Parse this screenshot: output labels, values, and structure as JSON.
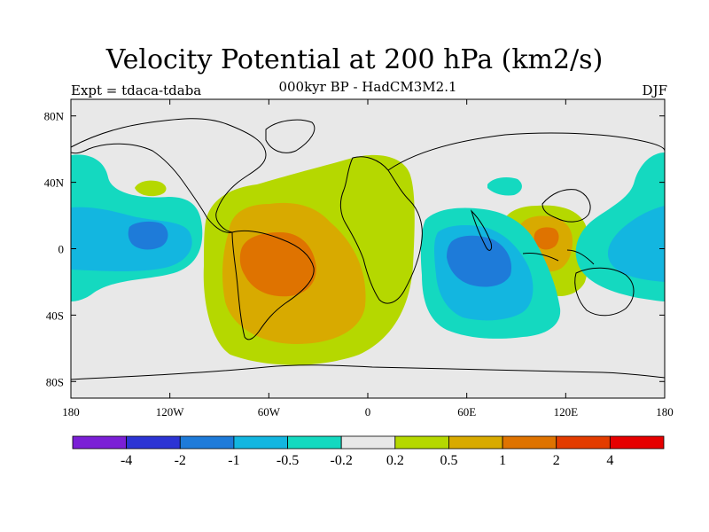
{
  "header": {
    "title": "Velocity Potential at 200 hPa (km2/s)",
    "subtitle": "000kyr BP - HadCM3M2.1",
    "experiment": "Expt = tdaca-tdaba",
    "season": "DJF"
  },
  "map": {
    "lat_ticks": [
      "80N",
      "40N",
      "0",
      "40S",
      "80S"
    ],
    "lon_ticks": [
      "180",
      "120W",
      "60W",
      "0",
      "60E",
      "120E",
      "180"
    ],
    "lon_range": [
      -180,
      180
    ],
    "lat_range": [
      -90,
      90
    ],
    "background_color": "#e8e8e8",
    "coast_color": "#000000"
  },
  "colorbar": {
    "colors": [
      "#7b1fd6",
      "#2c34d4",
      "#1e7bd9",
      "#13b6e0",
      "#14d9c0",
      "#e8e8e8",
      "#b5d800",
      "#d8aa00",
      "#df7300",
      "#e33c00",
      "#e60000"
    ],
    "labels": [
      "-4",
      "-2",
      "-1",
      "-0.5",
      "-0.2",
      "0.2",
      "0.5",
      "1",
      "2",
      "4"
    ]
  }
}
